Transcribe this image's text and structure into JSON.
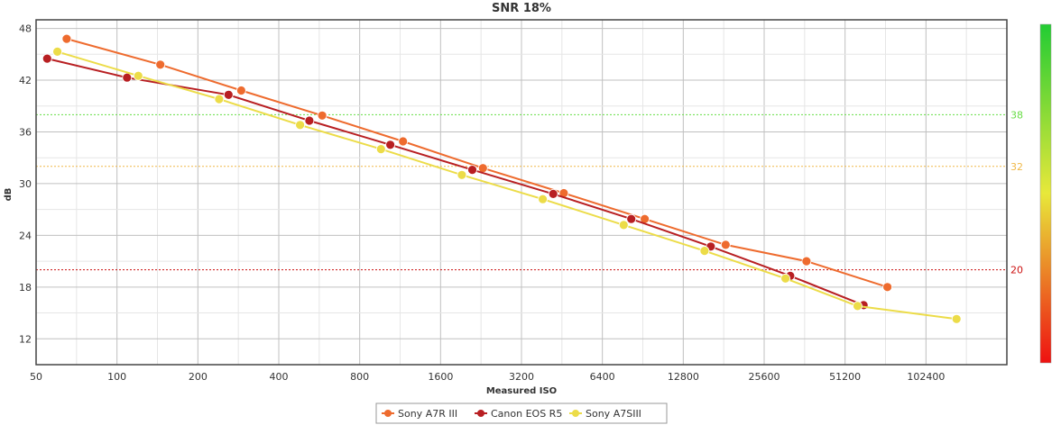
{
  "chart_data": {
    "type": "line",
    "title": "SNR 18%",
    "xlabel": "Measured ISO",
    "ylabel": "dB",
    "x_scale": "log2",
    "xlim": [
      50,
      204800
    ],
    "ylim": [
      9,
      49
    ],
    "x_ticks": [
      50,
      100,
      200,
      400,
      800,
      1600,
      3200,
      6400,
      12800,
      25600,
      51200,
      102400
    ],
    "x_tick_labels": [
      "50",
      "100",
      "200",
      "400",
      "800",
      "1600",
      "3200",
      "6400",
      "12800",
      "25600",
      "51200",
      "102400"
    ],
    "y_ticks": [
      12,
      18,
      24,
      30,
      36,
      42,
      48
    ],
    "y_tick_labels": [
      "12",
      "18",
      "24",
      "30",
      "36",
      "42",
      "48"
    ],
    "grid": true,
    "legend_position": "bottom-center",
    "reference_lines": [
      {
        "value": 38,
        "label": "38",
        "color": "#66dd44"
      },
      {
        "value": 32,
        "label": "32",
        "color": "#f0b848"
      },
      {
        "value": 20,
        "label": "20",
        "color": "#cc1111"
      }
    ],
    "color_bar": {
      "colors": [
        "#22cc33",
        "#e8e83a",
        "#ee1111"
      ]
    },
    "series": [
      {
        "name": "Sony A7R III",
        "color": "#ee6b2e",
        "x": [
          65,
          145,
          290,
          580,
          1160,
          2300,
          4600,
          9200,
          18400,
          36800,
          73600
        ],
        "y": [
          46.8,
          43.8,
          40.8,
          37.9,
          34.9,
          31.8,
          28.9,
          25.9,
          22.9,
          21.0,
          18.0
        ]
      },
      {
        "name": "Canon EOS R5",
        "color": "#b81f22",
        "x": [
          55,
          109,
          260,
          520,
          1040,
          2100,
          4200,
          8200,
          16200,
          32000,
          60000
        ],
        "y": [
          44.5,
          42.3,
          40.3,
          37.3,
          34.5,
          31.6,
          28.8,
          25.9,
          22.7,
          19.3,
          15.9
        ]
      },
      {
        "name": "Sony A7SIII",
        "color": "#ecdc48",
        "x": [
          60,
          120,
          240,
          480,
          960,
          1920,
          3840,
          7680,
          15360,
          30720,
          57000,
          133000
        ],
        "y": [
          45.3,
          42.5,
          39.8,
          36.8,
          34.0,
          31.0,
          28.2,
          25.2,
          22.2,
          19.0,
          15.8,
          14.3
        ]
      }
    ]
  }
}
